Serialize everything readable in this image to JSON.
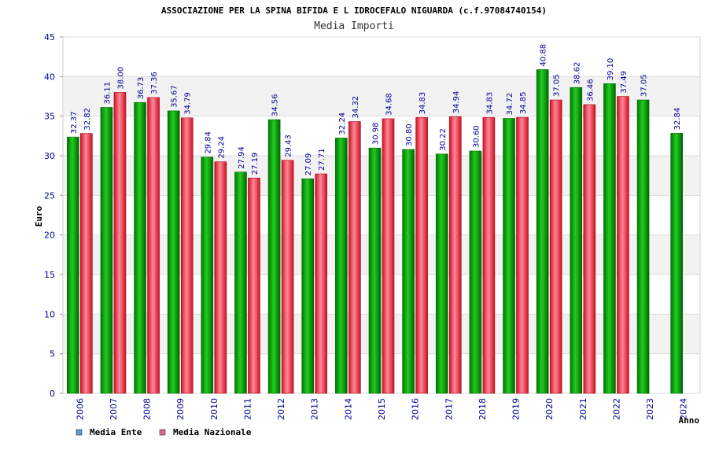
{
  "chart_data": {
    "type": "bar",
    "title": "ASSOCIAZIONE PER LA SPINA BIFIDA E L IDROCEFALO NIGUARDA (c.f.97084740154)",
    "subtitle": "Media Importi",
    "xlabel": "Anno",
    "ylabel": "Euro",
    "ylim": [
      0,
      45
    ],
    "yticks": [
      0,
      5,
      10,
      15,
      20,
      25,
      30,
      35,
      40,
      45
    ],
    "grid": true,
    "legend_position": "bottom-left",
    "categories": [
      "2006",
      "2007",
      "2008",
      "2009",
      "2010",
      "2011",
      "2012",
      "2013",
      "2014",
      "2015",
      "2016",
      "2017",
      "2018",
      "2019",
      "2020",
      "2021",
      "2022",
      "2023",
      "2024"
    ],
    "series": [
      {
        "name": "Media Ente",
        "color": "#11aa11",
        "legend_color": "#5b9bd5",
        "values": [
          32.37,
          36.11,
          36.73,
          35.67,
          29.84,
          27.94,
          34.56,
          27.09,
          32.24,
          30.98,
          30.8,
          30.22,
          30.6,
          34.72,
          40.88,
          38.62,
          39.1,
          37.05,
          32.84
        ],
        "labels": [
          "32.37",
          "36.11",
          "36.73",
          "35.67",
          "29.84",
          "27.94",
          "34.56",
          "27.09",
          "32.24",
          "30.98",
          "30.80",
          "30.22",
          "30.60",
          "34.72",
          "40.88",
          "38.62",
          "39.10",
          "37.05",
          "32.84"
        ]
      },
      {
        "name": "Media Nazionale",
        "color": "#ee3344",
        "legend_color": "#dd6699",
        "values": [
          32.82,
          38.0,
          37.36,
          34.79,
          29.24,
          27.19,
          29.43,
          27.71,
          34.32,
          34.68,
          34.83,
          34.94,
          34.83,
          34.85,
          37.05,
          36.46,
          37.49,
          null,
          null
        ],
        "labels": [
          "32.82",
          "38.00",
          "37.36",
          "34.79",
          "29.24",
          "27.19",
          "29.43",
          "27.71",
          "34.32",
          "34.68",
          "34.83",
          "34.94",
          "34.83",
          "34.85",
          "37.05",
          "36.46",
          "37.49",
          null,
          null
        ]
      }
    ]
  }
}
